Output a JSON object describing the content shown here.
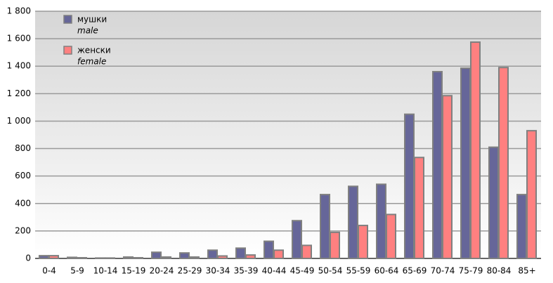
{
  "chart_data": {
    "type": "bar",
    "categories": [
      "0-4",
      "5-9",
      "10-14",
      "15-19",
      "20-24",
      "25-29",
      "30-34",
      "35-39",
      "40-44",
      "45-49",
      "50-54",
      "55-59",
      "60-64",
      "65-69",
      "70-74",
      "75-79",
      "80-84",
      "85+"
    ],
    "series": [
      {
        "name": "мушки",
        "name_en": "male",
        "color": "#666699",
        "values": [
          20,
          8,
          3,
          10,
          45,
          40,
          60,
          75,
          125,
          275,
          465,
          525,
          540,
          1050,
          1360,
          1385,
          810,
          465
        ]
      },
      {
        "name": "женски",
        "name_en": "female",
        "color": "#ff8080",
        "values": [
          20,
          5,
          3,
          5,
          10,
          10,
          18,
          25,
          60,
          95,
          190,
          240,
          320,
          735,
          1185,
          1575,
          1390,
          930
        ]
      }
    ],
    "ylim": [
      0,
      1800
    ],
    "yticks": [
      0,
      200,
      400,
      600,
      800,
      {
        "value": 1000,
        "label": "1 000"
      },
      {
        "value": 1200,
        "label": "1 200"
      },
      {
        "value": 1400,
        "label": "1 400"
      },
      {
        "value": 1600,
        "label": "1 600"
      },
      {
        "value": 1800,
        "label": "1 800"
      }
    ],
    "grid": true
  }
}
